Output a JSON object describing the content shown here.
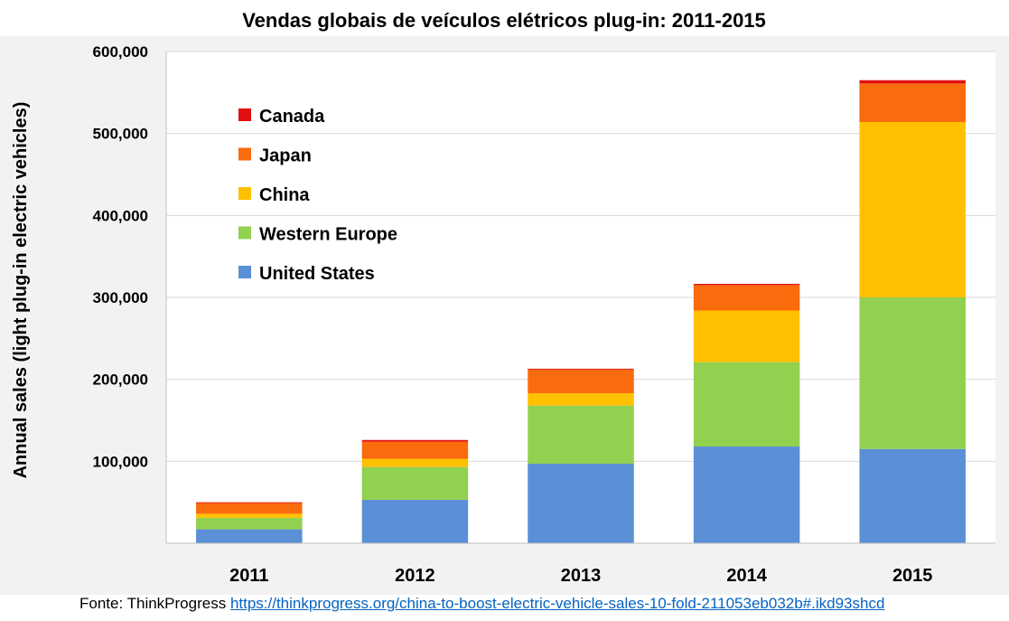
{
  "chart_data": {
    "type": "bar",
    "stacked": true,
    "title": "Vendas globais de veículos elétricos plug-in: 2011-2015",
    "ylabel": "Annual sales (light plug-in electric vehicles)",
    "xlabel": "",
    "ylim": [
      0,
      600000
    ],
    "yticks": [
      {
        "value": 100000,
        "label": "100,000"
      },
      {
        "value": 200000,
        "label": "200,000"
      },
      {
        "value": 300000,
        "label": "300,000"
      },
      {
        "value": 400000,
        "label": "400,000"
      },
      {
        "value": 500000,
        "label": "500,000"
      },
      {
        "value": 600000,
        "label": "600,000"
      }
    ],
    "grid": true,
    "legend_position": "top-left",
    "categories": [
      "2011",
      "2012",
      "2013",
      "2014",
      "2015"
    ],
    "series": [
      {
        "name": "United States",
        "color": "#5b8fd6",
        "values": [
          17000,
          53000,
          97000,
          118000,
          115000
        ]
      },
      {
        "name": "Western Europe",
        "color": "#92d050",
        "values": [
          14000,
          40000,
          71000,
          103000,
          185000
        ]
      },
      {
        "name": "China",
        "color": "#ffc000",
        "values": [
          5000,
          10000,
          15000,
          63000,
          214000
        ]
      },
      {
        "name": "Japan",
        "color": "#f96b0c",
        "values": [
          13000,
          21000,
          29000,
          31000,
          47000
        ]
      },
      {
        "name": "Canada",
        "color": "#e01010",
        "values": [
          1000,
          2000,
          1000,
          1500,
          4000
        ]
      }
    ],
    "legend_order": [
      "Canada",
      "Japan",
      "China",
      "Western Europe",
      "United States"
    ]
  },
  "source": {
    "prefix": "Fonte: ThinkProgress ",
    "link_text": "https://thinkprogress.org/china-to-boost-electric-vehicle-sales-10-fold-211053eb032b#.ikd93shcd"
  }
}
